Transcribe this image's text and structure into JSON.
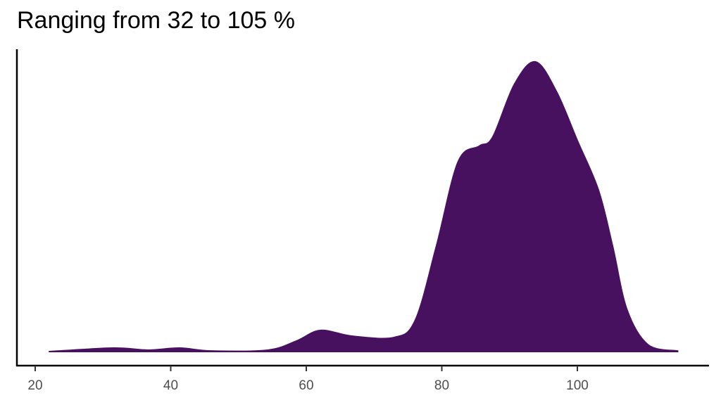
{
  "chart_data": {
    "type": "area",
    "subtype": "density",
    "title": "Ranging from 32 to 105 %",
    "xlabel": "",
    "ylabel": "",
    "x_ticks": [
      20,
      40,
      60,
      80,
      100
    ],
    "x_tick_labels": [
      "20",
      "40",
      "60",
      "80",
      "100"
    ],
    "xlim": [
      19,
      118
    ],
    "y_ticks": [],
    "grid": false,
    "legend": null,
    "fill_color": "#481160",
    "x": [
      22,
      31.5,
      36.6,
      41.3,
      46,
      54.3,
      58.5,
      62.1,
      66.8,
      73,
      76.1,
      79.2,
      82.4,
      85.5,
      87.5,
      90.7,
      93.8,
      96.9,
      100,
      103.1,
      105.2,
      107.3,
      110.4,
      114.8
    ],
    "density_relative": [
      0.0,
      0.012,
      0.005,
      0.012,
      0.002,
      0.005,
      0.036,
      0.073,
      0.053,
      0.049,
      0.109,
      0.364,
      0.655,
      0.709,
      0.74,
      0.922,
      1.0,
      0.898,
      0.728,
      0.558,
      0.364,
      0.146,
      0.024,
      0.002
    ]
  }
}
